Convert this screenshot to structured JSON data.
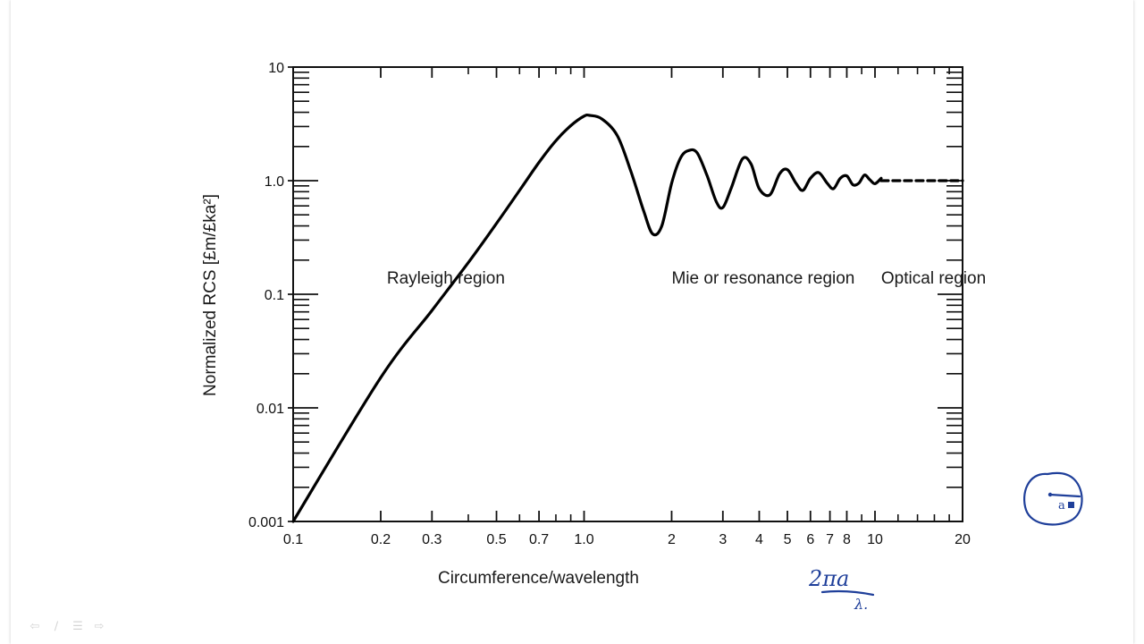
{
  "chart_data": {
    "type": "line",
    "title": "",
    "xlabel": "Circumference/wavelength",
    "ylabel": "Normalized RCS [£m/£ka²]",
    "x_scale": "log",
    "y_scale": "log",
    "xlim": [
      0.1,
      20
    ],
    "ylim": [
      0.001,
      10
    ],
    "x_ticks": [
      0.1,
      0.2,
      0.3,
      0.5,
      0.7,
      1.0,
      2,
      3,
      4,
      5,
      6,
      7,
      8,
      10,
      20
    ],
    "x_tick_labels": [
      "0.1",
      "0.2",
      "0.3",
      "0.5",
      "0.7",
      "1.0",
      "2",
      "3",
      "4",
      "5",
      "6",
      "7",
      "8",
      "10",
      "20"
    ],
    "y_ticks": [
      0.001,
      0.01,
      0.1,
      1.0,
      10
    ],
    "y_tick_labels": [
      "0.001",
      "0.01",
      "0.1",
      "1.0",
      "10"
    ],
    "series": [
      {
        "style": "solid",
        "x": [
          0.1,
          0.2,
          0.3,
          0.4,
          0.5,
          0.6,
          0.7,
          0.8,
          0.9,
          1.0,
          1.05,
          1.15,
          1.3,
          1.45,
          1.6,
          1.72,
          1.85,
          2.0,
          2.15,
          2.3,
          2.45,
          2.65,
          2.85,
          3.0,
          3.2,
          3.5,
          3.75,
          4.0,
          4.35,
          4.7,
          5.0,
          5.35,
          5.65,
          6.0,
          6.4,
          6.85,
          7.2,
          7.6,
          8.0,
          8.4,
          8.8,
          9.2,
          9.6,
          10.0,
          10.5
        ],
        "y": [
          0.001,
          0.0185,
          0.072,
          0.19,
          0.42,
          0.82,
          1.45,
          2.25,
          3.05,
          3.7,
          3.75,
          3.5,
          2.5,
          1.2,
          0.55,
          0.34,
          0.4,
          0.95,
          1.6,
          1.85,
          1.75,
          1.1,
          0.65,
          0.58,
          0.85,
          1.55,
          1.4,
          0.85,
          0.75,
          1.15,
          1.25,
          0.95,
          0.82,
          1.05,
          1.18,
          0.95,
          0.85,
          1.05,
          1.1,
          0.92,
          0.95,
          1.12,
          1.02,
          0.94,
          1.05
        ]
      },
      {
        "style": "dashed",
        "x": [
          10.5,
          20
        ],
        "y": [
          1.0,
          1.0
        ]
      }
    ],
    "annotations": [
      {
        "text": "Rayleigh region",
        "x": 0.21,
        "y": 0.1
      },
      {
        "text": "Mie or resonance region",
        "x": 2.0,
        "y": 0.1
      },
      {
        "text": "Optical region",
        "x": 10.5,
        "y": 0.1
      }
    ],
    "grid": false,
    "legend": "none"
  },
  "handwriting": {
    "fraction_numerator": "2πa",
    "fraction_denominator": "λ.",
    "sphere_radius_label": "a"
  },
  "navigation": [
    {
      "name": "nav-back-icon",
      "glyph": "⇦"
    },
    {
      "name": "nav-pen-icon",
      "glyph": "∕"
    },
    {
      "name": "nav-menu-icon",
      "glyph": "☰"
    },
    {
      "name": "nav-forward-icon",
      "glyph": "⇨"
    }
  ],
  "colors": {
    "axis": "#111111",
    "curve": "#000000",
    "ink": "#1f3f9a"
  }
}
